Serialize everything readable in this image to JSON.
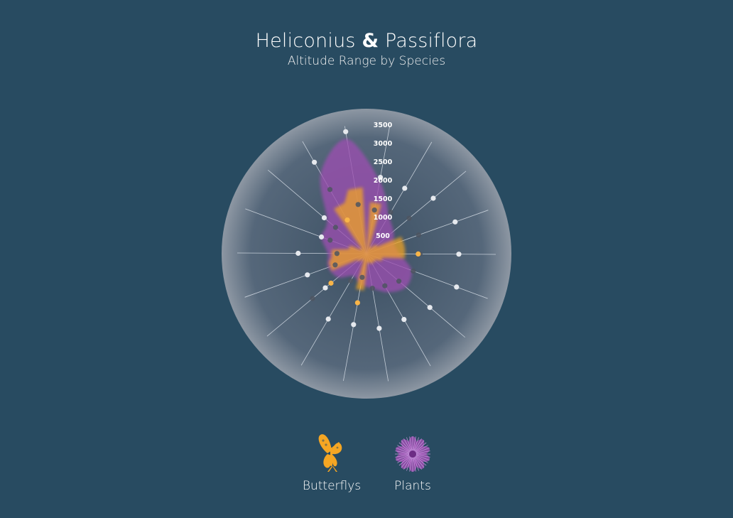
{
  "header": {
    "title_part1": "Heliconius",
    "title_amp": "&",
    "title_part2": "Passiflora",
    "subtitle": "Altitude Range by Species"
  },
  "colors": {
    "background": "#284b61",
    "butterflies": "#f5a623",
    "plants": "#9b4fb0"
  },
  "legend": [
    {
      "label": "Butterflys",
      "icon": "butterfly-icon",
      "color": "#f5a623"
    },
    {
      "label": "Plants",
      "icon": "passion-flower-icon",
      "color": "#9b4fb0"
    }
  ],
  "chart_data": {
    "type": "radar-area",
    "title": "Heliconius & Passiflora",
    "subtitle": "Altitude Range by Species",
    "radial_axis": {
      "min": 0,
      "max": 3500,
      "ticks": [
        500,
        1000,
        1500,
        2000,
        2500,
        3000,
        3500
      ]
    },
    "spokes": 18,
    "series": [
      {
        "name": "Plants",
        "color": "#9b4fb0",
        "max_altitude": [
          2000,
          1200,
          950,
          800,
          900,
          1300,
          1400,
          1200,
          950,
          850,
          700,
          1000,
          1100,
          1050,
          1300,
          1400,
          2500,
          3150
        ]
      },
      {
        "name": "Butterflys",
        "color": "#f5a623",
        "max_altitude": [
          1400,
          200,
          350,
          1050,
          1050,
          450,
          300,
          300,
          250,
          1000,
          200,
          300,
          1050,
          950,
          500,
          200,
          1500,
          1800
        ]
      }
    ],
    "points": [
      {
        "name": "white",
        "values": [
          2100,
          2050,
          2350,
          2550,
          2500,
          2600,
          2250,
          2050,
          2050,
          1950,
          2050,
          1450,
          1700,
          1850,
          1300,
          1500,
          2850,
          3350
        ]
      },
      {
        "name": "dark",
        "values": [
          1200,
          1300,
          1500,
          1500,
          1450,
          1350,
          1150,
          1000,
          950,
          650,
          850,
          1900,
          900,
          800,
          1050,
          1100,
          2000,
          1350
        ]
      },
      {
        "name": "orange",
        "values": [
          null,
          null,
          null,
          null,
          1400,
          null,
          null,
          null,
          null,
          1350,
          null,
          1250,
          null,
          null,
          null,
          null,
          1050,
          null
        ]
      }
    ]
  }
}
